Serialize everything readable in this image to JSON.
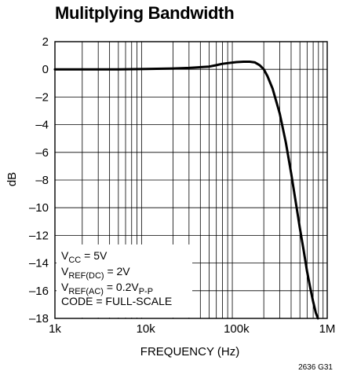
{
  "chart_data": {
    "type": "line",
    "title": "Mulitplying Bandwidth",
    "xlabel": "FREQUENCY (Hz)",
    "ylabel": "dB",
    "xscale": "log",
    "xlim": [
      1000,
      1000000
    ],
    "ylim": [
      -18,
      2
    ],
    "xticks": [
      1000,
      10000,
      100000,
      1000000
    ],
    "xtick_labels": [
      "1k",
      "10k",
      "100k",
      "1M"
    ],
    "yticks": [
      2,
      0,
      -2,
      -4,
      -6,
      -8,
      -10,
      -12,
      -14,
      -16,
      -18
    ],
    "ytick_labels": [
      "2",
      "0",
      "–2",
      "–4",
      "–6",
      "–8",
      "–10",
      "–12",
      "–14",
      "–16",
      "–18"
    ],
    "grid": true,
    "annotations": [
      {
        "base": "V",
        "sub": "CC",
        "rest": " = 5V",
        "sub2": ""
      },
      {
        "base": "V",
        "sub": "REF(DC)",
        "rest": " = 2V",
        "sub2": ""
      },
      {
        "base": "V",
        "sub": "REF(AC)",
        "rest": " = 0.2V",
        "sub2": "P-P"
      },
      {
        "base": "CODE = FULL-SCALE",
        "sub": "",
        "rest": "",
        "sub2": ""
      }
    ],
    "figure_id": "2636 G31",
    "series": [
      {
        "x": [
          1000,
          2000,
          5000,
          10000,
          20000,
          30000,
          50000,
          60000,
          70000,
          80000,
          100000,
          120000,
          140000,
          160000,
          180000,
          200000,
          220000,
          250000,
          300000,
          350000,
          400000,
          450000,
          500000,
          550000,
          600000,
          650000,
          700000,
          750000,
          790000
        ],
        "y": [
          0,
          0,
          0,
          0.02,
          0.06,
          0.1,
          0.2,
          0.3,
          0.4,
          0.45,
          0.52,
          0.55,
          0.55,
          0.5,
          0.3,
          0,
          -0.5,
          -1.4,
          -3.2,
          -5.3,
          -7.5,
          -9.6,
          -11.5,
          -13.1,
          -14.6,
          -15.8,
          -16.8,
          -17.6,
          -18
        ]
      }
    ]
  }
}
